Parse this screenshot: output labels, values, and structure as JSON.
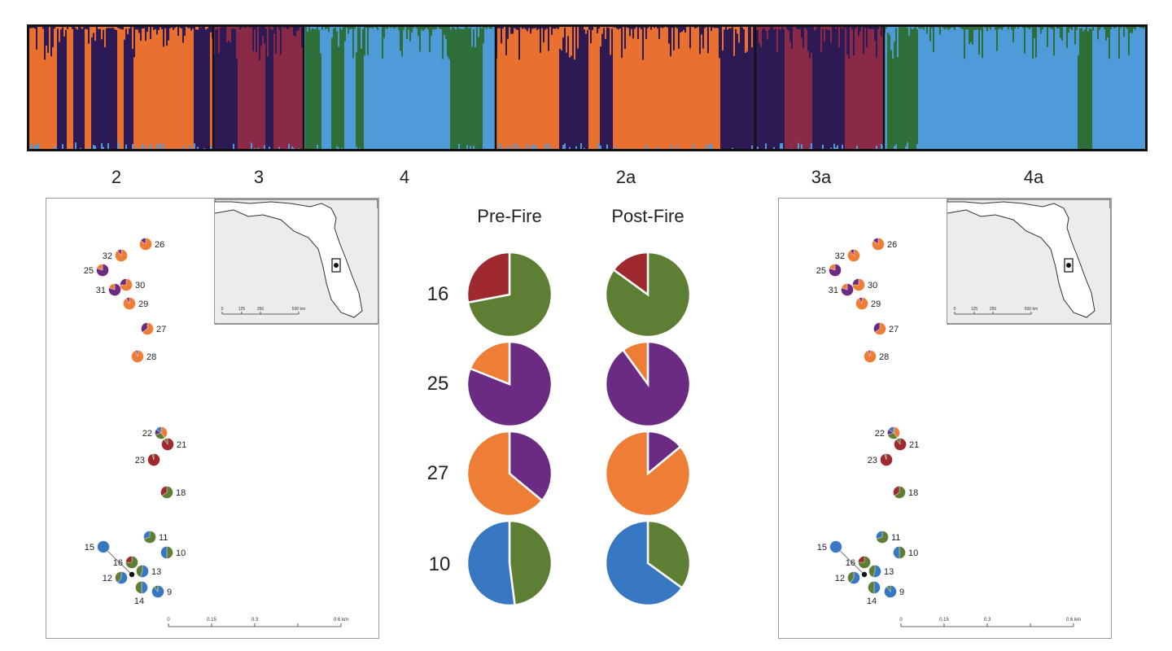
{
  "colors": {
    "orange": "#ea7030",
    "navy": "#2d1a55",
    "crimson": "#8b2a46",
    "green": "#2e6e39",
    "blue": "#4f9ad8",
    "pie_orange": "#ee7d35",
    "pie_purple": "#6b2b82",
    "pie_red": "#9e2a2f",
    "pie_green": "#5e7e34",
    "pie_blue": "#3877c2"
  },
  "cluster_labels": [
    "2",
    "3",
    "4",
    "2a",
    "3a",
    "4a"
  ],
  "pie_panel": {
    "headers": [
      "Pre-Fire",
      "Post-Fire"
    ],
    "rows": [
      {
        "label": "16",
        "pre": [
          {
            "c": "pie_green",
            "v": 0.72
          },
          {
            "c": "pie_red",
            "v": 0.28
          }
        ],
        "post": [
          {
            "c": "pie_green",
            "v": 0.85
          },
          {
            "c": "pie_red",
            "v": 0.15
          }
        ]
      },
      {
        "label": "25",
        "pre": [
          {
            "c": "pie_purple",
            "v": 0.81
          },
          {
            "c": "pie_orange",
            "v": 0.19
          }
        ],
        "post": [
          {
            "c": "pie_purple",
            "v": 0.9
          },
          {
            "c": "pie_orange",
            "v": 0.1
          }
        ]
      },
      {
        "label": "27",
        "pre": [
          {
            "c": "pie_purple",
            "v": 0.36
          },
          {
            "c": "pie_orange",
            "v": 0.64
          }
        ],
        "post": [
          {
            "c": "pie_purple",
            "v": 0.14
          },
          {
            "c": "pie_orange",
            "v": 0.86
          }
        ]
      },
      {
        "label": "10",
        "pre": [
          {
            "c": "pie_green",
            "v": 0.48
          },
          {
            "c": "pie_blue",
            "v": 0.52
          }
        ],
        "post": [
          {
            "c": "pie_green",
            "v": 0.35
          },
          {
            "c": "pie_blue",
            "v": 0.65
          }
        ]
      }
    ]
  },
  "map": {
    "scale_ticks": [
      "0",
      "0.15",
      "0.3",
      "0.6 km"
    ],
    "inset_scale_ticks": [
      "0",
      "125",
      "250",
      "500 km"
    ],
    "sites": [
      {
        "id": "32",
        "mix": [
          {
            "c": "pie_orange",
            "v": 0.9
          },
          {
            "c": "pie_purple",
            "v": 0.1
          }
        ]
      },
      {
        "id": "26",
        "mix": [
          {
            "c": "pie_orange",
            "v": 0.85
          },
          {
            "c": "pie_purple",
            "v": 0.15
          }
        ]
      },
      {
        "id": "25",
        "mix": [
          {
            "c": "pie_purple",
            "v": 0.8
          },
          {
            "c": "pie_orange",
            "v": 0.2
          }
        ]
      },
      {
        "id": "31",
        "mix": [
          {
            "c": "pie_purple",
            "v": 0.8
          },
          {
            "c": "pie_orange",
            "v": 0.2
          }
        ]
      },
      {
        "id": "30",
        "mix": [
          {
            "c": "pie_orange",
            "v": 0.75
          },
          {
            "c": "pie_purple",
            "v": 0.25
          }
        ]
      },
      {
        "id": "29",
        "mix": [
          {
            "c": "pie_orange",
            "v": 0.92
          },
          {
            "c": "pie_purple",
            "v": 0.08
          }
        ]
      },
      {
        "id": "27",
        "mix": [
          {
            "c": "pie_orange",
            "v": 0.65
          },
          {
            "c": "pie_purple",
            "v": 0.35
          }
        ]
      },
      {
        "id": "28",
        "mix": [
          {
            "c": "pie_orange",
            "v": 0.95
          },
          {
            "c": "pie_purple",
            "v": 0.05
          }
        ]
      },
      {
        "id": "22",
        "mix": [
          {
            "c": "pie_orange",
            "v": 0.4
          },
          {
            "c": "pie_green",
            "v": 0.3
          },
          {
            "c": "pie_purple",
            "v": 0.15
          },
          {
            "c": "pie_blue",
            "v": 0.15
          }
        ]
      },
      {
        "id": "21",
        "mix": [
          {
            "c": "pie_red",
            "v": 0.9
          },
          {
            "c": "pie_green",
            "v": 0.1
          }
        ]
      },
      {
        "id": "23",
        "mix": [
          {
            "c": "pie_red",
            "v": 0.95
          },
          {
            "c": "pie_green",
            "v": 0.05
          }
        ]
      },
      {
        "id": "18",
        "mix": [
          {
            "c": "pie_green",
            "v": 0.65
          },
          {
            "c": "pie_red",
            "v": 0.35
          }
        ]
      },
      {
        "id": "11",
        "mix": [
          {
            "c": "pie_green",
            "v": 0.7
          },
          {
            "c": "pie_blue",
            "v": 0.3
          }
        ]
      },
      {
        "id": "15",
        "mix": [
          {
            "c": "pie_blue",
            "v": 1.0
          }
        ]
      },
      {
        "id": "16",
        "mix": [
          {
            "c": "pie_green",
            "v": 0.75
          },
          {
            "c": "pie_red",
            "v": 0.25
          }
        ]
      },
      {
        "id": "10",
        "mix": [
          {
            "c": "pie_green",
            "v": 0.5
          },
          {
            "c": "pie_blue",
            "v": 0.5
          }
        ]
      },
      {
        "id": "13",
        "mix": [
          {
            "c": "pie_blue",
            "v": 0.55
          },
          {
            "c": "pie_green",
            "v": 0.45
          }
        ]
      },
      {
        "id": "12",
        "mix": [
          {
            "c": "pie_blue",
            "v": 0.6
          },
          {
            "c": "pie_green",
            "v": 0.4
          }
        ]
      },
      {
        "id": "14",
        "mix": [
          {
            "c": "pie_blue",
            "v": 0.5
          },
          {
            "c": "pie_green",
            "v": 0.5
          }
        ]
      },
      {
        "id": "9",
        "mix": [
          {
            "c": "pie_blue",
            "v": 0.9
          },
          {
            "c": "pie_green",
            "v": 0.1
          }
        ]
      }
    ]
  }
}
